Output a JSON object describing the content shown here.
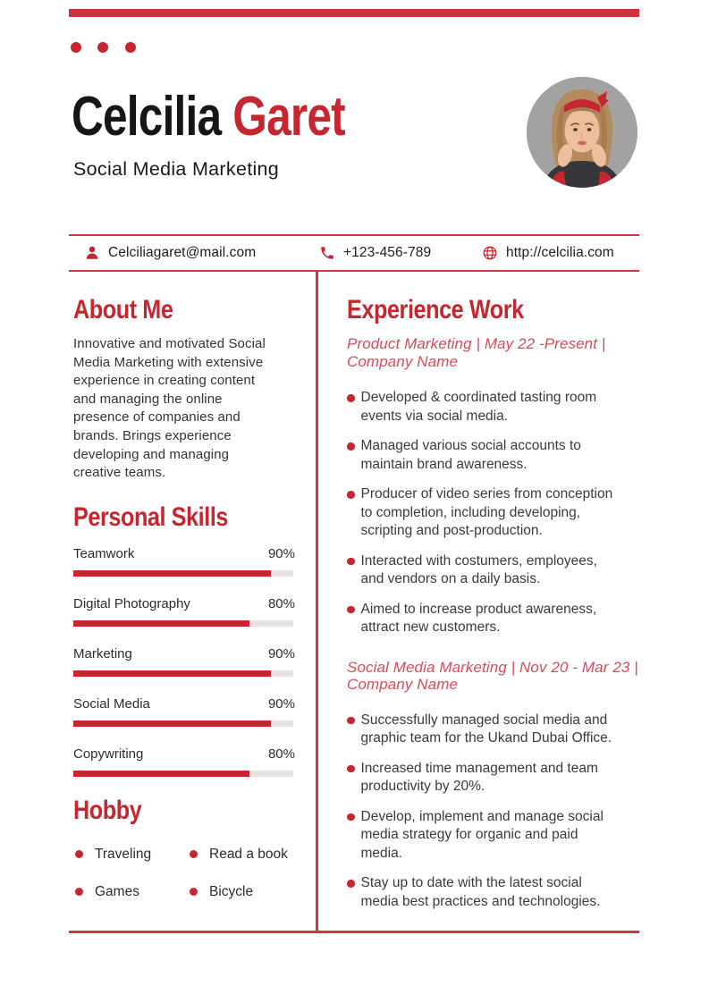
{
  "colors": {
    "accent_red": "#c5262f",
    "rule_red": "#cc3a3f",
    "job_title_red": "#d94b57",
    "skill_track_gray": "#e5e4e2",
    "body_text": "#333333"
  },
  "header": {
    "first_name": "Celcilia",
    "last_name": "Garet",
    "role": "Social Media Marketing",
    "decor_dots_count": 3,
    "avatar": "woman-portrait-photo"
  },
  "contact": {
    "email": {
      "icon": "person-icon",
      "value": "Celciliagaret@mail.com"
    },
    "phone": {
      "icon": "phone-icon",
      "value": "+123-456-789"
    },
    "website": {
      "icon": "globe-icon",
      "value": "http://celcilia.com"
    }
  },
  "about": {
    "heading": "About Me",
    "text": "Innovative and motivated Social\nMedia Marketing with extensive\nexperience in creating content\nand managing the online\npresence of companies and\nbrands. Brings experience\ndeveloping and managing\ncreative teams."
  },
  "skills": {
    "heading": "Personal Skills",
    "items": [
      {
        "label": "Teamwork",
        "percent": "90%",
        "value": 90
      },
      {
        "label": "Digital Photography",
        "percent": "80%",
        "value": 80
      },
      {
        "label": "Marketing",
        "percent": "90%",
        "value": 90
      },
      {
        "label": "Social Media",
        "percent": "90%",
        "value": 90
      },
      {
        "label": "Copywriting",
        "percent": "80%",
        "value": 80
      }
    ]
  },
  "hobby": {
    "heading": "Hobby",
    "items": [
      "Traveling",
      "Read a book",
      "Games",
      "Bicycle"
    ]
  },
  "experience": {
    "heading": "Experience Work",
    "jobs": [
      {
        "title": "Product Marketing | May 22 -Present |\nCompany Name",
        "bullets": [
          "Developed & coordinated tasting room\nevents via social media.",
          "Managed various social accounts to\nmaintain brand awareness.",
          "Producer of video series from conception\nto completion, including developing,\nscripting and post-production.",
          "Interacted with costumers, employees,\nand vendors on a daily basis.",
          "Aimed to increase product awareness,\nattract new customers."
        ]
      },
      {
        "title": "Social Media Marketing | Nov 20 - Mar 23 |\nCompany Name",
        "bullets": [
          "Successfully managed social media and\ngraphic team for the Ukand Dubai Office.",
          "Increased time management and team\nproductivity by 20%.",
          "Develop, implement and manage social\nmedia strategy for organic and paid\nmedia.",
          "Stay up to date with the latest social\nmedia best practices and technologies."
        ]
      }
    ]
  }
}
